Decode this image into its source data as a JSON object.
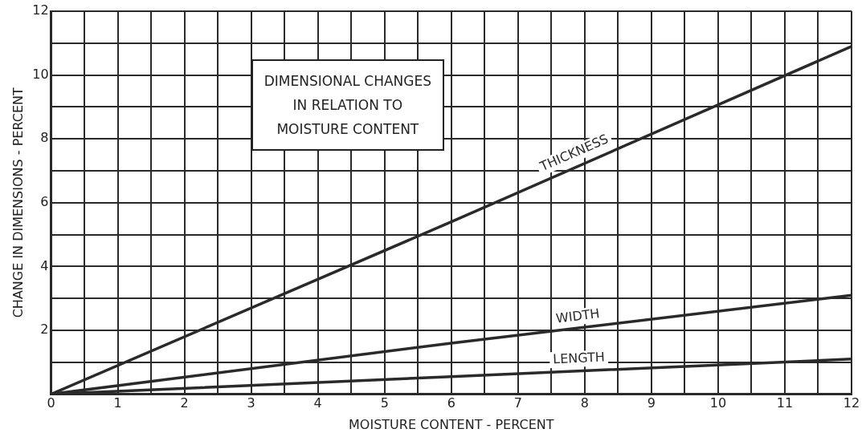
{
  "chart_data": {
    "type": "line",
    "title": "DIMENSIONAL CHANGES\nIN RELATION TO\nMOISTURE CONTENT",
    "xlabel": "MOISTURE CONTENT - PERCENT",
    "ylabel": "CHANGE IN DIMENSIONS - PERCENT",
    "x": [
      0,
      6,
      12
    ],
    "series": [
      {
        "name": "THICKNESS",
        "color": "#2a2a2a",
        "values": [
          0,
          5.4,
          10.9
        ]
      },
      {
        "name": "WIDTH",
        "color": "#2a2a2a",
        "values": [
          0,
          1.6,
          3.1
        ]
      },
      {
        "name": "LENGTH",
        "color": "#2a2a2a",
        "values": [
          0,
          0.55,
          1.1
        ]
      }
    ],
    "xlim": [
      0,
      12
    ],
    "ylim": [
      0,
      12
    ],
    "xticks": [
      0,
      {
        "value": 0.5,
        "label": null
      },
      1,
      {
        "value": 1.5,
        "label": null
      },
      2,
      {
        "value": 2.5,
        "label": null
      },
      3,
      {
        "value": 3.5,
        "label": null
      },
      4,
      {
        "value": 4.5,
        "label": null
      },
      5,
      {
        "value": 5.5,
        "label": null
      },
      6,
      {
        "value": 6.5,
        "label": null
      },
      7,
      {
        "value": 7.5,
        "label": null
      },
      8,
      {
        "value": 8.5,
        "label": null
      },
      9,
      {
        "value": 9.5,
        "label": null
      },
      10,
      {
        "value": 10.5,
        "label": null
      },
      11,
      {
        "value": 11.5,
        "label": null
      },
      12
    ],
    "yticks": [
      {
        "value": 0,
        "label": null
      },
      {
        "value": 1,
        "label": null
      },
      2,
      {
        "value": 3,
        "label": null
      },
      4,
      {
        "value": 5,
        "label": null
      },
      6,
      {
        "value": 7,
        "label": null
      },
      8,
      {
        "value": 9,
        "label": null
      },
      10,
      {
        "value": 11,
        "label": null
      },
      12
    ],
    "grid": true,
    "legend": false,
    "marker": "none",
    "line_style": "solid"
  }
}
